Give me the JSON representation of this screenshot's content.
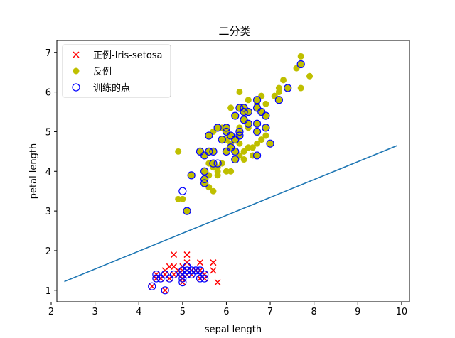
{
  "chart_data": {
    "type": "scatter",
    "title": "二分类",
    "xlabel": "sepal length",
    "ylabel": "petal length",
    "xlim": [
      2.13,
      10.18
    ],
    "ylim": [
      0.71,
      7.3
    ],
    "xticks": [
      2,
      3,
      4,
      5,
      6,
      7,
      8,
      9,
      10
    ],
    "yticks": [
      1,
      2,
      3,
      4,
      5,
      6,
      7
    ],
    "legend_position": "top-left",
    "series": [
      {
        "name": "正例-Iris-setosa",
        "marker": "x",
        "color": "#ff0000",
        "points": [
          [
            4.3,
            1.1
          ],
          [
            4.4,
            1.3
          ],
          [
            4.4,
            1.4
          ],
          [
            4.5,
            1.3
          ],
          [
            4.6,
            1.0
          ],
          [
            4.6,
            1.4
          ],
          [
            4.6,
            1.5
          ],
          [
            4.7,
            1.3
          ],
          [
            4.7,
            1.6
          ],
          [
            4.8,
            1.4
          ],
          [
            4.8,
            1.6
          ],
          [
            4.8,
            1.9
          ],
          [
            4.9,
            1.4
          ],
          [
            4.9,
            1.5
          ],
          [
            5.0,
            1.2
          ],
          [
            5.0,
            1.3
          ],
          [
            5.0,
            1.4
          ],
          [
            5.0,
            1.5
          ],
          [
            5.0,
            1.6
          ],
          [
            5.1,
            1.4
          ],
          [
            5.1,
            1.5
          ],
          [
            5.1,
            1.7
          ],
          [
            5.1,
            1.9
          ],
          [
            5.2,
            1.4
          ],
          [
            5.2,
            1.5
          ],
          [
            5.3,
            1.5
          ],
          [
            5.4,
            1.3
          ],
          [
            5.4,
            1.5
          ],
          [
            5.4,
            1.7
          ],
          [
            5.5,
            1.3
          ],
          [
            5.5,
            1.4
          ],
          [
            5.7,
            1.5
          ],
          [
            5.7,
            1.7
          ],
          [
            5.8,
            1.2
          ]
        ]
      },
      {
        "name": "反例",
        "marker": "o",
        "color": "#bfbf00",
        "points": [
          [
            4.9,
            4.5
          ],
          [
            4.9,
            3.3
          ],
          [
            5.0,
            3.3
          ],
          [
            5.1,
            3.0
          ],
          [
            5.2,
            3.9
          ],
          [
            5.4,
            4.5
          ],
          [
            5.5,
            3.7
          ],
          [
            5.5,
            3.8
          ],
          [
            5.5,
            4.0
          ],
          [
            5.5,
            4.4
          ],
          [
            5.6,
            3.6
          ],
          [
            5.6,
            3.9
          ],
          [
            5.6,
            4.2
          ],
          [
            5.6,
            4.5
          ],
          [
            5.6,
            4.9
          ],
          [
            5.7,
            3.5
          ],
          [
            5.7,
            4.1
          ],
          [
            5.7,
            4.2
          ],
          [
            5.7,
            4.5
          ],
          [
            5.7,
            5.0
          ],
          [
            5.8,
            3.9
          ],
          [
            5.8,
            4.0
          ],
          [
            5.8,
            4.1
          ],
          [
            5.8,
            5.1
          ],
          [
            5.9,
            4.2
          ],
          [
            5.9,
            4.8
          ],
          [
            5.9,
            5.1
          ],
          [
            6.0,
            4.0
          ],
          [
            6.0,
            4.5
          ],
          [
            6.0,
            4.8
          ],
          [
            6.0,
            5.0
          ],
          [
            6.0,
            5.1
          ],
          [
            6.1,
            4.0
          ],
          [
            6.1,
            4.6
          ],
          [
            6.1,
            4.7
          ],
          [
            6.1,
            4.9
          ],
          [
            6.1,
            5.6
          ],
          [
            6.2,
            4.3
          ],
          [
            6.2,
            4.5
          ],
          [
            6.2,
            4.8
          ],
          [
            6.2,
            5.4
          ],
          [
            6.3,
            4.4
          ],
          [
            6.3,
            4.7
          ],
          [
            6.3,
            4.9
          ],
          [
            6.3,
            5.0
          ],
          [
            6.3,
            5.1
          ],
          [
            6.3,
            5.6
          ],
          [
            6.3,
            6.0
          ],
          [
            6.4,
            4.3
          ],
          [
            6.4,
            4.5
          ],
          [
            6.4,
            5.3
          ],
          [
            6.4,
            5.5
          ],
          [
            6.4,
            5.6
          ],
          [
            6.5,
            4.6
          ],
          [
            6.5,
            5.1
          ],
          [
            6.5,
            5.2
          ],
          [
            6.5,
            5.5
          ],
          [
            6.5,
            5.8
          ],
          [
            6.6,
            4.4
          ],
          [
            6.6,
            4.6
          ],
          [
            6.7,
            4.4
          ],
          [
            6.7,
            4.7
          ],
          [
            6.7,
            5.0
          ],
          [
            6.7,
            5.2
          ],
          [
            6.7,
            5.6
          ],
          [
            6.7,
            5.7
          ],
          [
            6.7,
            5.8
          ],
          [
            6.8,
            4.8
          ],
          [
            6.8,
            5.5
          ],
          [
            6.8,
            5.9
          ],
          [
            6.9,
            4.9
          ],
          [
            6.9,
            5.1
          ],
          [
            6.9,
            5.4
          ],
          [
            6.9,
            5.7
          ],
          [
            7.0,
            4.7
          ],
          [
            7.1,
            5.9
          ],
          [
            7.2,
            5.8
          ],
          [
            7.2,
            6.0
          ],
          [
            7.2,
            6.1
          ],
          [
            7.3,
            6.3
          ],
          [
            7.4,
            6.1
          ],
          [
            7.6,
            6.6
          ],
          [
            7.7,
            6.1
          ],
          [
            7.7,
            6.7
          ],
          [
            7.7,
            6.9
          ],
          [
            7.9,
            6.4
          ]
        ]
      },
      {
        "name": "训练的点",
        "marker": "open-circle",
        "color": "#0000ff",
        "points": [
          [
            4.3,
            1.1
          ],
          [
            4.4,
            1.3
          ],
          [
            4.4,
            1.4
          ],
          [
            4.5,
            1.3
          ],
          [
            4.6,
            1.0
          ],
          [
            4.6,
            1.4
          ],
          [
            4.7,
            1.3
          ],
          [
            4.8,
            1.4
          ],
          [
            5.0,
            1.2
          ],
          [
            5.0,
            1.3
          ],
          [
            5.0,
            1.4
          ],
          [
            5.0,
            1.5
          ],
          [
            5.1,
            1.4
          ],
          [
            5.1,
            1.5
          ],
          [
            5.1,
            1.6
          ],
          [
            5.2,
            1.4
          ],
          [
            5.2,
            1.5
          ],
          [
            5.3,
            1.5
          ],
          [
            5.4,
            1.3
          ],
          [
            5.4,
            1.5
          ],
          [
            5.5,
            1.3
          ],
          [
            5.5,
            1.4
          ],
          [
            5.0,
            3.5
          ],
          [
            5.1,
            3.0
          ],
          [
            5.2,
            3.9
          ],
          [
            5.4,
            4.5
          ],
          [
            5.5,
            3.7
          ],
          [
            5.5,
            3.8
          ],
          [
            5.5,
            4.0
          ],
          [
            5.5,
            4.4
          ],
          [
            5.6,
            4.5
          ],
          [
            5.6,
            4.9
          ],
          [
            5.7,
            4.2
          ],
          [
            5.7,
            4.5
          ],
          [
            5.8,
            4.2
          ],
          [
            5.8,
            5.1
          ],
          [
            5.9,
            4.8
          ],
          [
            6.0,
            4.5
          ],
          [
            6.0,
            5.0
          ],
          [
            6.0,
            5.1
          ],
          [
            6.1,
            4.6
          ],
          [
            6.1,
            4.9
          ],
          [
            6.2,
            4.3
          ],
          [
            6.2,
            4.5
          ],
          [
            6.2,
            4.8
          ],
          [
            6.2,
            5.4
          ],
          [
            6.3,
            4.9
          ],
          [
            6.3,
            5.0
          ],
          [
            6.3,
            5.6
          ],
          [
            6.4,
            5.3
          ],
          [
            6.4,
            5.5
          ],
          [
            6.4,
            5.6
          ],
          [
            6.5,
            5.2
          ],
          [
            6.5,
            5.5
          ],
          [
            6.7,
            4.4
          ],
          [
            6.7,
            5.0
          ],
          [
            6.7,
            5.2
          ],
          [
            6.7,
            5.6
          ],
          [
            6.7,
            5.8
          ],
          [
            6.8,
            5.5
          ],
          [
            6.9,
            5.1
          ],
          [
            6.9,
            5.4
          ],
          [
            7.0,
            4.7
          ],
          [
            7.2,
            5.8
          ],
          [
            7.4,
            6.1
          ],
          [
            7.7,
            6.7
          ]
        ]
      }
    ],
    "line": {
      "color": "#1f77b4",
      "x": [
        2.3,
        9.9
      ],
      "y": [
        1.22,
        4.65
      ]
    }
  }
}
